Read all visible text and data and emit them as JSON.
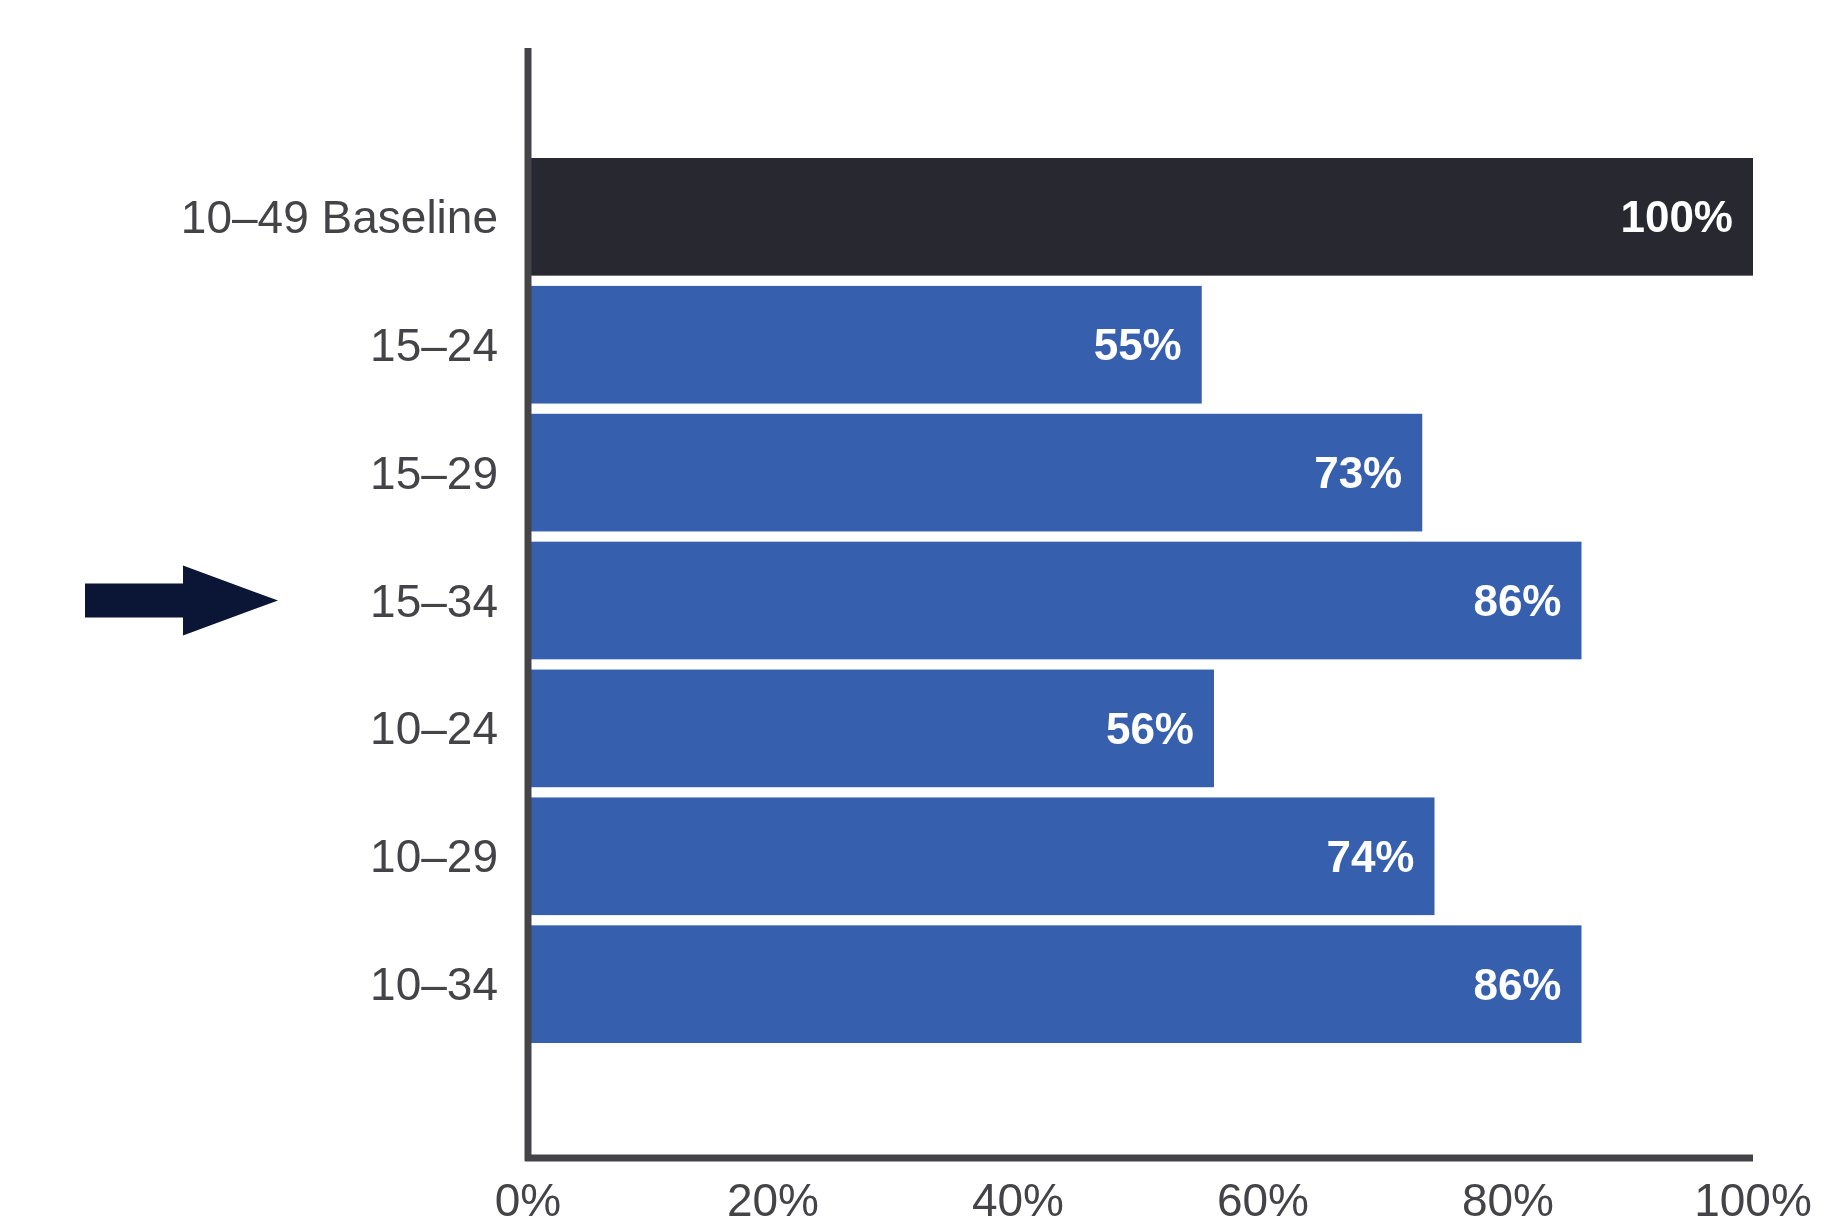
{
  "chart_data": {
    "type": "bar",
    "orientation": "horizontal",
    "categories": [
      "10–49 Baseline",
      "15–24",
      "15–29",
      "15–34",
      "10–24",
      "10–29",
      "10–34"
    ],
    "values": [
      100,
      55,
      73,
      86,
      56,
      74,
      86
    ],
    "colors": [
      "#282830",
      "#3660ad",
      "#3660ad",
      "#3660ad",
      "#3660ad",
      "#3660ad",
      "#3660ad"
    ],
    "value_labels": [
      "100%",
      "55%",
      "73%",
      "86%",
      "56%",
      "74%",
      "86%"
    ],
    "xlim": [
      0,
      100
    ],
    "xticks": [
      {
        "value": 0,
        "label": "0%"
      },
      {
        "value": 20,
        "label": "20%"
      },
      {
        "value": 40,
        "label": "40%"
      },
      {
        "value": 60,
        "label": "60%"
      },
      {
        "value": 80,
        "label": "80%"
      },
      {
        "value": 100,
        "label": "100%"
      }
    ],
    "grid": false
  }
}
